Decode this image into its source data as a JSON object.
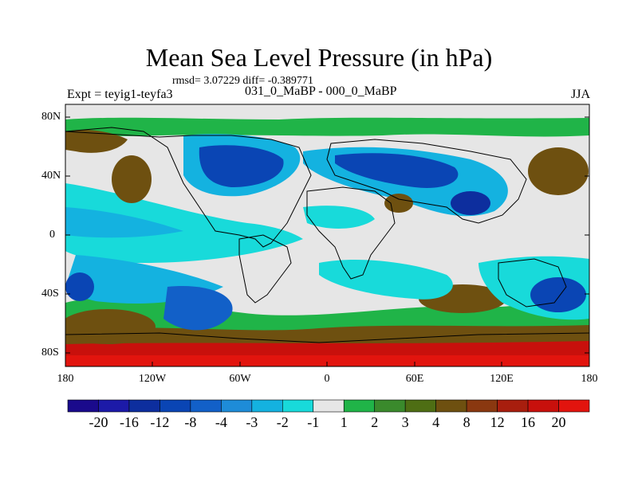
{
  "title": "Mean Sea Level Pressure (in hPa)",
  "stats": "rmsd= 3.07229 diff= -0.389771",
  "left_label": "Expt = teyig1-teyfa3",
  "center_label": "031_0_MaBP - 000_0_MaBP",
  "right_label": "JJA",
  "lat_labels": [
    "80N",
    "40N",
    "0",
    "40S",
    "80S"
  ],
  "lon_labels": [
    "180",
    "120W",
    "60W",
    "0",
    "60E",
    "120E",
    "180"
  ],
  "colorbar": {
    "labels": [
      "-20",
      "-16",
      "-12",
      "-8",
      "-4",
      "-3",
      "-2",
      "-1",
      "1",
      "2",
      "3",
      "4",
      "8",
      "12",
      "16",
      "20"
    ],
    "colors": [
      "#1a0a8c",
      "#1c1aa8",
      "#0d2e9e",
      "#0a45b4",
      "#1260c8",
      "#1e8cd8",
      "#14b2e0",
      "#18dada",
      "#e6e6e6",
      "#20b448",
      "#3a8a2c",
      "#4e6e14",
      "#6e5010",
      "#8a3810",
      "#a81e0e",
      "#c8100c",
      "#e2140e"
    ]
  },
  "colors": {
    "background": "#e6e6e6",
    "coastline": "#000000"
  }
}
